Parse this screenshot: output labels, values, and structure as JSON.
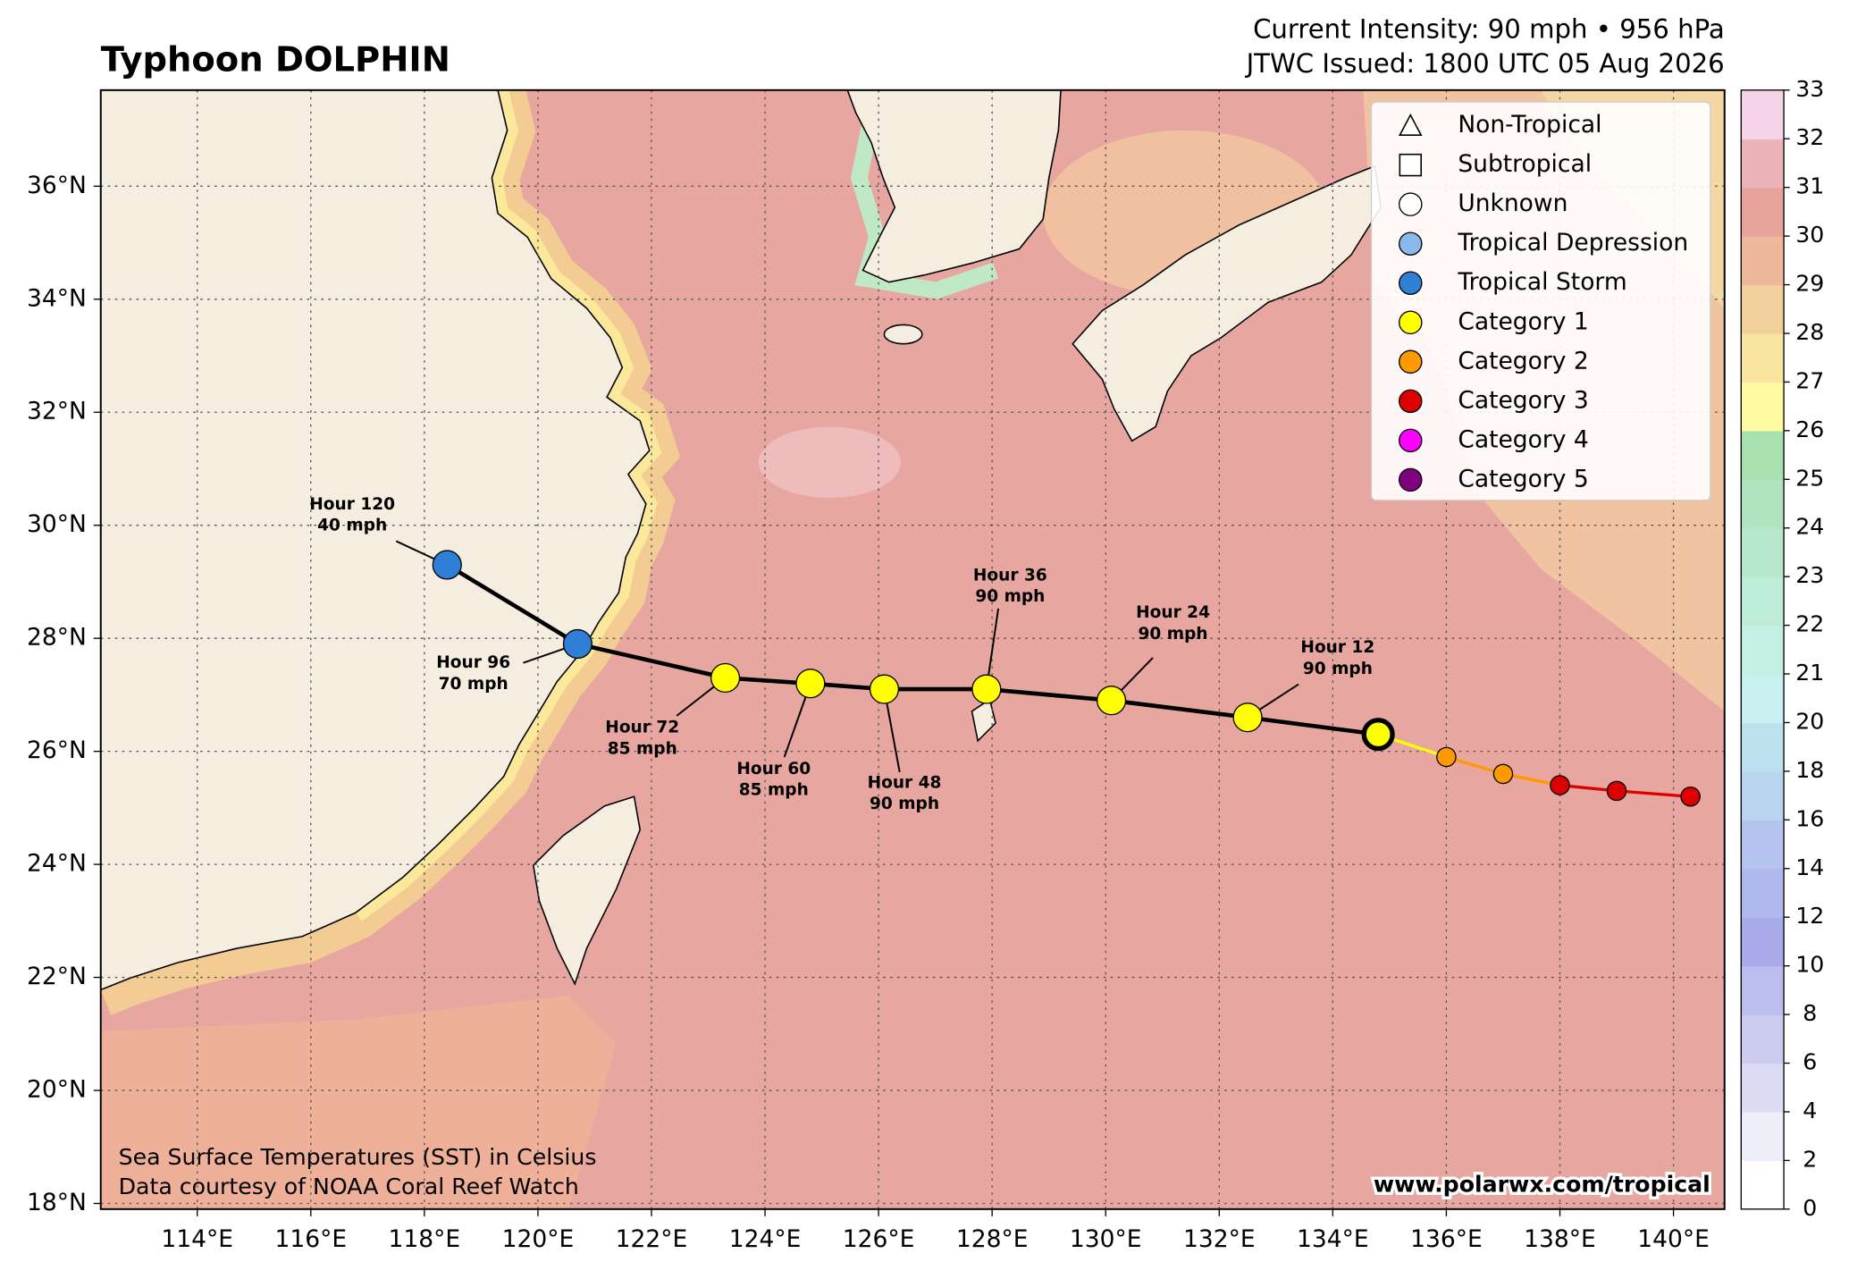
{
  "header": {
    "title": "Typhoon DOLPHIN",
    "intensity": "Current Intensity: 90 mph • 956 hPa",
    "issued": "JTWC Issued: 1800 UTC 05 Aug 2026"
  },
  "map": {
    "lon_range": [
      112.3,
      140.9
    ],
    "lat_range": [
      17.9,
      37.7
    ],
    "grid": true,
    "lon_ticks": [
      {
        "value": 114,
        "label": "114°E"
      },
      {
        "value": 116,
        "label": "116°E"
      },
      {
        "value": 118,
        "label": "118°E"
      },
      {
        "value": 120,
        "label": "120°E"
      },
      {
        "value": 122,
        "label": "122°E"
      },
      {
        "value": 124,
        "label": "124°E"
      },
      {
        "value": 126,
        "label": "126°E"
      },
      {
        "value": 128,
        "label": "128°E"
      },
      {
        "value": 130,
        "label": "130°E"
      },
      {
        "value": 132,
        "label": "132°E"
      },
      {
        "value": 134,
        "label": "134°E"
      },
      {
        "value": 136,
        "label": "136°E"
      },
      {
        "value": 138,
        "label": "138°E"
      },
      {
        "value": 140,
        "label": "140°E"
      }
    ],
    "lat_ticks": [
      {
        "value": 18,
        "label": "18°N"
      },
      {
        "value": 20,
        "label": "20°N"
      },
      {
        "value": 22,
        "label": "22°N"
      },
      {
        "value": 24,
        "label": "24°N"
      },
      {
        "value": 26,
        "label": "26°N"
      },
      {
        "value": 28,
        "label": "28°N"
      },
      {
        "value": 30,
        "label": "30°N"
      },
      {
        "value": 32,
        "label": "32°N"
      },
      {
        "value": 34,
        "label": "34°N"
      },
      {
        "value": 36,
        "label": "36°N"
      }
    ]
  },
  "track": {
    "forecast_color": "#000000",
    "points": [
      {
        "lon": 140.3,
        "lat": 25.2,
        "color": "#dd0000"
      },
      {
        "lon": 139.0,
        "lat": 25.3,
        "color": "#dd0000"
      },
      {
        "lon": 138.0,
        "lat": 25.4,
        "color": "#dd0000"
      },
      {
        "lon": 137.0,
        "lat": 25.6,
        "color": "#ff9900"
      },
      {
        "lon": 136.0,
        "lat": 25.9,
        "color": "#ff9900"
      },
      {
        "lon": 134.8,
        "lat": 26.3,
        "color": "#ffff00",
        "current": true
      },
      {
        "lon": 132.5,
        "lat": 26.6,
        "color": "#ffff00",
        "hour": "Hour 12",
        "wind": "90 mph"
      },
      {
        "lon": 130.1,
        "lat": 26.9,
        "color": "#ffff00",
        "hour": "Hour 24",
        "wind": "90 mph"
      },
      {
        "lon": 127.9,
        "lat": 27.1,
        "color": "#ffff00",
        "hour": "Hour 36",
        "wind": "90 mph"
      },
      {
        "lon": 126.1,
        "lat": 27.1,
        "color": "#ffff00",
        "hour": "Hour 48",
        "wind": "90 mph"
      },
      {
        "lon": 124.8,
        "lat": 27.2,
        "color": "#ffff00",
        "hour": "Hour 60",
        "wind": "85 mph"
      },
      {
        "lon": 123.3,
        "lat": 27.3,
        "color": "#ffff00",
        "hour": "Hour 72",
        "wind": "85 mph"
      },
      {
        "lon": 120.7,
        "lat": 27.9,
        "color": "#2f7fd6",
        "hour": "Hour 96",
        "wind": "70 mph"
      },
      {
        "lon": 118.4,
        "lat": 29.3,
        "color": "#2f7fd6",
        "hour": "Hour 120",
        "wind": "40 mph"
      }
    ]
  },
  "legend": {
    "entries": [
      {
        "label": "Non-Tropical"
      },
      {
        "label": "Subtropical"
      },
      {
        "label": "Unknown",
        "color": "#ffffff"
      },
      {
        "label": "Tropical Depression",
        "color": "#8ab8e8"
      },
      {
        "label": "Tropical Storm",
        "color": "#2f7fd6"
      },
      {
        "label": "Category 1",
        "color": "#ffff00"
      },
      {
        "label": "Category 2",
        "color": "#ff9900"
      },
      {
        "label": "Category 3",
        "color": "#dd0000"
      },
      {
        "label": "Category 4",
        "color": "#ff00ff"
      },
      {
        "label": "Category 5",
        "color": "#800080"
      }
    ]
  },
  "colorbar": {
    "ticks": [
      0,
      2,
      4,
      6,
      8,
      10,
      12,
      14,
      16,
      18,
      20,
      21,
      22,
      23,
      24,
      25,
      26,
      27,
      28,
      29,
      30,
      31,
      32,
      33
    ],
    "colors": [
      "#ffffff",
      "#eeeefa",
      "#dcdcf5",
      "#ccccf0",
      "#babdee",
      "#a8aaea",
      "#b0b8ee",
      "#b4c4ee",
      "#b8d4ee",
      "#bde0ee",
      "#c8f0f0",
      "#c4f0e4",
      "#bdecd8",
      "#b8e8cc",
      "#b0e4c0",
      "#a8e0b0",
      "#fdfaa0",
      "#f8e6a0",
      "#f2d09c",
      "#eeb89a",
      "#e8a49c",
      "#ecb4b8",
      "#f5d4ea"
    ]
  },
  "footer": {
    "sst_note": "Sea Surface Temperatures (SST) in Celsius",
    "credit": "Data courtesy of NOAA Coral Reef Watch",
    "website": "www.polarwx.com/tropical"
  }
}
